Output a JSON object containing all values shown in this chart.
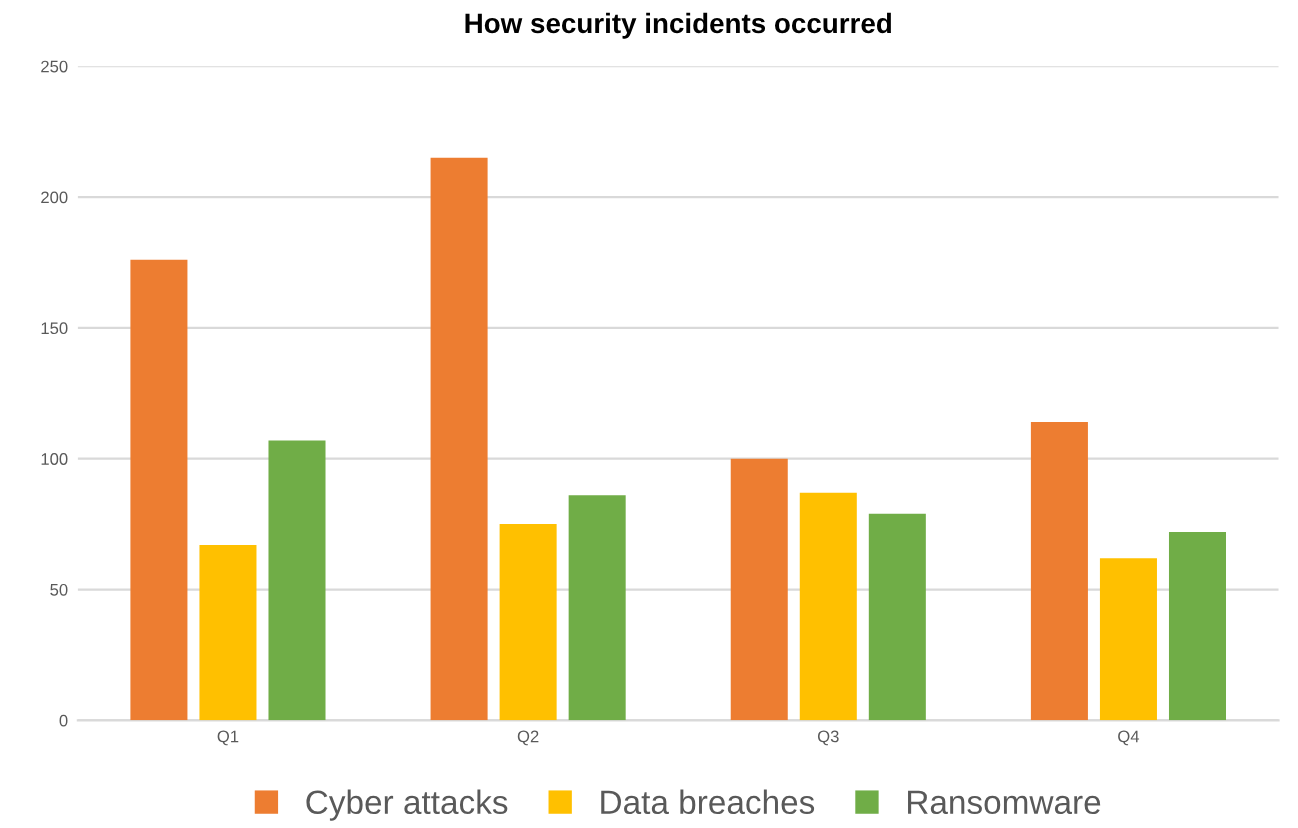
{
  "chart_data": {
    "type": "bar",
    "title": "How security incidents occurred",
    "categories": [
      "Q1",
      "Q2",
      "Q3",
      "Q4"
    ],
    "series": [
      {
        "name": "Cyber attacks",
        "color": "#ed7d31",
        "values": [
          176,
          215,
          100,
          114
        ]
      },
      {
        "name": "Data breaches",
        "color": "#ffc000",
        "values": [
          67,
          75,
          87,
          62
        ]
      },
      {
        "name": "Ransomware",
        "color": "#70ad47",
        "values": [
          107,
          86,
          79,
          72
        ]
      }
    ],
    "ylim": [
      0,
      250
    ],
    "yticks": [
      0,
      50,
      100,
      150,
      200,
      250
    ],
    "grid": "y",
    "legend": "bottom"
  }
}
